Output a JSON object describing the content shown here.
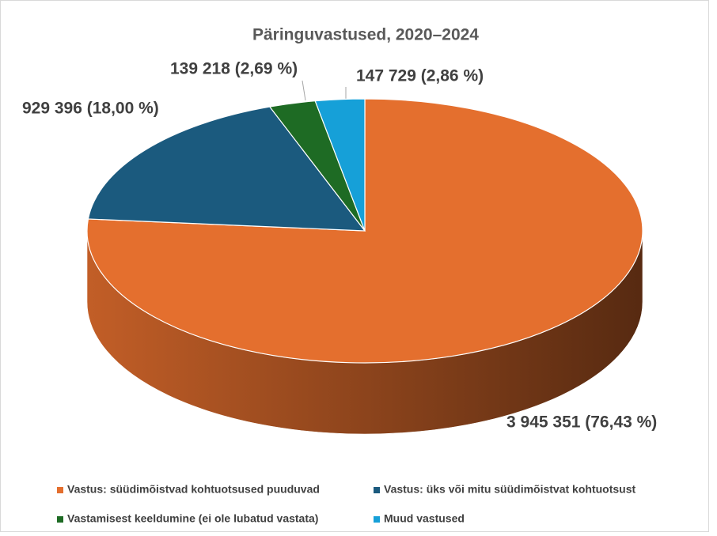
{
  "chart_data": {
    "type": "pie",
    "title": "Päringuvastused, 2020–2024",
    "categories": [
      "Vastus: süüdimõistvad kohtuotsused puuduvad",
      "Vastus: üks või mitu süüdimõistvat kohtuotsust",
      "Vastamisest keeldumine (ei ole lubatud vastata)",
      "Muud vastused"
    ],
    "values": [
      3945351,
      929396,
      139218,
      147729
    ],
    "value_labels": [
      "3 945 351 (76,43 %)",
      "929 396 (18,00 %)",
      "139 218 (2,69 %)",
      "147 729 (2,86 %)"
    ],
    "colors": [
      "#e46f2e",
      "#1b5a7e",
      "#1e6b24",
      "#16a0d8"
    ],
    "legend": "bottom"
  }
}
